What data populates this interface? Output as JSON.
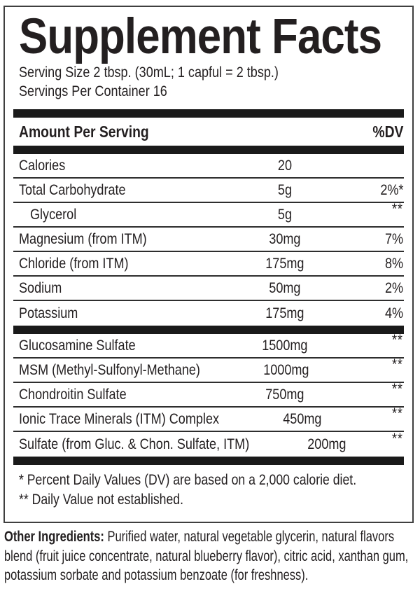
{
  "colors": {
    "text": "#231f20",
    "bar": "#1a1a1a",
    "rule": "#2e2e2e",
    "border": "#3f3f3f",
    "background": "#ffffff"
  },
  "panel": {
    "title": "Supplement Facts",
    "serving_size_line": "Serving Size 2 tbsp. (30mL; 1 capful = 2 tbsp.)",
    "servings_per_container_line": "Servings Per Container 16",
    "column_header": {
      "amount_per_serving": "Amount Per Serving",
      "percent_dv": "%DV"
    },
    "nutrient_rows": [
      {
        "name": "Calories",
        "amount": "20",
        "dv": "",
        "indent": false
      },
      {
        "name": "Total Carbohydrate",
        "amount": "5g",
        "dv": "2%*",
        "indent": false
      },
      {
        "name": "Glycerol",
        "amount": "5g",
        "dv": "**",
        "indent": true
      },
      {
        "name": "Magnesium (from ITM)",
        "amount": "30mg",
        "dv": "7%",
        "indent": false
      },
      {
        "name": "Chloride (from ITM)",
        "amount": "175mg",
        "dv": "8%",
        "indent": false
      },
      {
        "name": "Sodium",
        "amount": "50mg",
        "dv": "2%",
        "indent": false
      },
      {
        "name": "Potassium",
        "amount": "175mg",
        "dv": "4%",
        "indent": false
      }
    ],
    "supplement_rows": [
      {
        "name": "Glucosamine Sulfate",
        "amount": "1500mg",
        "dv": "**",
        "indent": false
      },
      {
        "name": "MSM (Methyl-Sulfonyl-Methane)",
        "amount": "1000mg",
        "dv": "**",
        "indent": false
      },
      {
        "name": "Chondroitin Sulfate",
        "amount": "750mg",
        "dv": "**",
        "indent": false
      },
      {
        "name": "Ionic Trace Minerals (ITM) Complex",
        "amount": "450mg",
        "dv": "**",
        "indent": false
      },
      {
        "name": "Sulfate (from Gluc. & Chon. Sulfate, ITM)",
        "amount": "200mg",
        "dv": "**",
        "indent": false
      }
    ],
    "footnotes": [
      "* Percent Daily Values (DV) are based on a 2,000 calorie diet.",
      "** Daily Value not established."
    ]
  },
  "other_ingredients": {
    "label": "Other Ingredients:",
    "text": "Purified water, natural vegetable glycerin, natural flavors blend (fruit juice concentrate, natural blueberry flavor), citric acid, xanthan gum, potassium sorbate and potassium benzoate (for freshness)."
  }
}
